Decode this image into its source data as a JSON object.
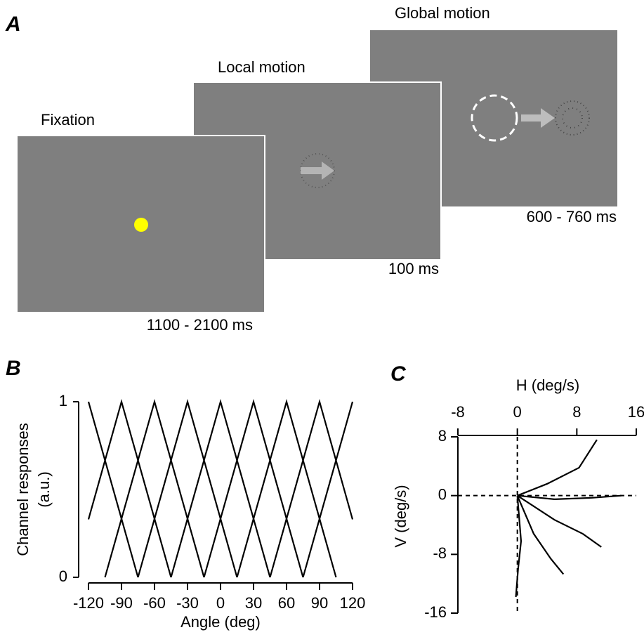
{
  "panel_a": {
    "label": "A",
    "frames": [
      {
        "title": "Fixation",
        "duration": "1100 - 2100 ms"
      },
      {
        "title": "Local motion",
        "duration": "100 ms"
      },
      {
        "title": "Global motion",
        "duration": "600 - 760 ms"
      }
    ]
  },
  "chart_data": [
    {
      "type": "line",
      "label": "B",
      "xlabel": "Angle (deg)",
      "ylabel": [
        "Channel responses",
        "(a.u.)"
      ],
      "xlim": [
        -120,
        120
      ],
      "ylim": [
        0,
        1
      ],
      "xticks": [
        -120,
        -90,
        -60,
        -30,
        0,
        30,
        60,
        90,
        120
      ],
      "yticks": [
        0,
        1
      ],
      "color": "#000000",
      "series": [
        {
          "x": [
            -120,
            -75
          ],
          "values": [
            1,
            0
          ]
        },
        {
          "x": [
            -120,
            -90,
            -45
          ],
          "values": [
            0.33,
            1,
            0
          ]
        },
        {
          "x": [
            -105,
            -60,
            -15
          ],
          "values": [
            0,
            1,
            0
          ]
        },
        {
          "x": [
            -75,
            -30,
            15
          ],
          "values": [
            0,
            1,
            0
          ]
        },
        {
          "x": [
            -45,
            0,
            45
          ],
          "values": [
            0,
            1,
            0
          ]
        },
        {
          "x": [
            -15,
            30,
            75
          ],
          "values": [
            0,
            1,
            0
          ]
        },
        {
          "x": [
            15,
            60,
            105
          ],
          "values": [
            0,
            1,
            0
          ]
        },
        {
          "x": [
            45,
            90,
            120
          ],
          "values": [
            0,
            1,
            0.33
          ]
        },
        {
          "x": [
            75,
            120
          ],
          "values": [
            0,
            1
          ]
        }
      ]
    },
    {
      "type": "line",
      "label": "C",
      "xlabel": "H (deg/s)",
      "ylabel": "V (deg/s)",
      "xlim": [
        -8,
        16
      ],
      "ylim": [
        -16,
        8
      ],
      "xticks": [
        -8,
        0,
        8,
        16
      ],
      "yticks": [
        8,
        0,
        -8,
        -16
      ],
      "color": "#000000",
      "series": [
        {
          "x": [
            0,
            4,
            8.3,
            10.7
          ],
          "values": [
            0,
            1.6,
            3.8,
            7.6
          ]
        },
        {
          "x": [
            0,
            5,
            10,
            14
          ],
          "values": [
            0,
            -0.5,
            -0.3,
            0
          ]
        },
        {
          "x": [
            0,
            5,
            8.8,
            11.3
          ],
          "values": [
            0,
            -3.3,
            -5.2,
            -7
          ]
        },
        {
          "x": [
            0,
            2.2,
            4.5,
            6.2
          ],
          "values": [
            0,
            -5.2,
            -8.6,
            -10.7
          ]
        },
        {
          "x": [
            0,
            0.5,
            0.1,
            -0.2
          ],
          "values": [
            0,
            -6.2,
            -10,
            -13.8
          ]
        }
      ]
    }
  ]
}
